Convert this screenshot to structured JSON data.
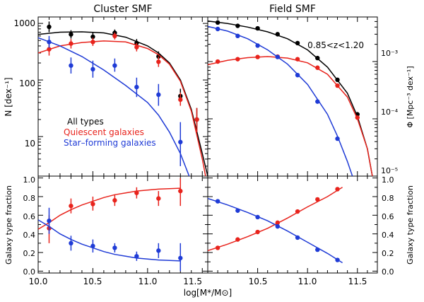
{
  "chart_data": {
    "type": "scatter",
    "x_axis": {
      "label": "log[M*/M⊙]",
      "left_ticks": [
        "10.0",
        "10.5",
        "11.0",
        "11.5"
      ],
      "right_ticks": [
        "10.5",
        "11.0",
        "11.5"
      ],
      "left_range": [
        10.0,
        11.55
      ],
      "right_range": [
        10.0,
        11.7
      ]
    },
    "panels": {
      "cluster_smf": {
        "title": "Cluster SMF",
        "ylabel": "N [dex⁻¹]",
        "yscale": "log",
        "ylim": [
          2,
          1300
        ],
        "tick_labels": [
          "1000",
          "100",
          "10"
        ],
        "legend": {
          "all_label": "All types",
          "quiescent_label": "Quiescent galaxies",
          "starforming_label": "Star–forming galaxies"
        },
        "series": [
          {
            "name": "All types",
            "color": "#000000",
            "points": [
              [
                10.1,
                870,
                700,
                1080
              ],
              [
                10.3,
                640,
                540,
                760
              ],
              [
                10.5,
                580,
                480,
                690
              ],
              [
                10.7,
                680,
                600,
                780
              ],
              [
                10.9,
                450,
                380,
                530
              ],
              [
                11.1,
                260,
                210,
                320
              ],
              [
                11.3,
                52,
                40,
                70
              ],
              [
                11.45,
                20,
                12,
                32
              ]
            ],
            "curve": [
              [
                10.0,
                640
              ],
              [
                10.2,
                700
              ],
              [
                10.4,
                710
              ],
              [
                10.6,
                680
              ],
              [
                10.8,
                570
              ],
              [
                11.0,
                400
              ],
              [
                11.1,
                300
              ],
              [
                11.2,
                200
              ],
              [
                11.3,
                100
              ],
              [
                11.4,
                30
              ],
              [
                11.5,
                5
              ],
              [
                11.55,
                2
              ]
            ]
          },
          {
            "name": "Quiescent galaxies",
            "color": "#e8231c",
            "points": [
              [
                10.1,
                350,
                270,
                440
              ],
              [
                10.3,
                440,
                360,
                530
              ],
              [
                10.5,
                470,
                400,
                560
              ],
              [
                10.7,
                600,
                520,
                690
              ],
              [
                10.9,
                380,
                320,
                450
              ],
              [
                11.1,
                210,
                170,
                260
              ],
              [
                11.3,
                45,
                35,
                60
              ],
              [
                11.45,
                20,
                12,
                32
              ]
            ],
            "curve": [
              [
                10.0,
                300
              ],
              [
                10.2,
                400
              ],
              [
                10.4,
                460
              ],
              [
                10.6,
                490
              ],
              [
                10.8,
                470
              ],
              [
                11.0,
                360
              ],
              [
                11.1,
                280
              ],
              [
                11.2,
                190
              ],
              [
                11.3,
                95
              ],
              [
                11.4,
                28
              ],
              [
                11.5,
                4
              ],
              [
                11.53,
                2
              ]
            ]
          },
          {
            "name": "Star-forming galaxies",
            "color": "#1f3bd6",
            "points": [
              [
                10.1,
                470,
                370,
                600
              ],
              [
                10.3,
                180,
                130,
                250
              ],
              [
                10.5,
                155,
                110,
                220
              ],
              [
                10.7,
                180,
                140,
                240
              ],
              [
                10.9,
                75,
                50,
                110
              ],
              [
                11.1,
                55,
                35,
                85
              ],
              [
                11.3,
                8,
                3,
                18
              ]
            ],
            "curve": [
              [
                10.0,
                560
              ],
              [
                10.2,
                400
              ],
              [
                10.4,
                260
              ],
              [
                10.6,
                150
              ],
              [
                10.8,
                80
              ],
              [
                11.0,
                40
              ],
              [
                11.1,
                24
              ],
              [
                11.2,
                12
              ],
              [
                11.3,
                5
              ],
              [
                11.38,
                2
              ]
            ]
          }
        ]
      },
      "field_smf": {
        "title": "Field SMF",
        "ylabel": "Φ [Mpc⁻³ dex⁻¹]",
        "yscale": "log",
        "ylim": [
          1e-05,
          0.006
        ],
        "tick_labels": [
          "10⁻³",
          "10⁻⁴",
          "10⁻⁵"
        ],
        "annotation": "0.85<z<1.20",
        "series": [
          {
            "name": "All types",
            "color": "#000000",
            "points": [
              [
                10.1,
                0.0048
              ],
              [
                10.3,
                0.0042
              ],
              [
                10.5,
                0.0038
              ],
              [
                10.7,
                0.003
              ],
              [
                10.9,
                0.0021
              ],
              [
                11.1,
                0.00115
              ],
              [
                11.3,
                0.00048
              ],
              [
                11.5,
                0.00012
              ]
            ],
            "curve": [
              [
                10.0,
                0.0051
              ],
              [
                10.2,
                0.0046
              ],
              [
                10.4,
                0.004
              ],
              [
                10.6,
                0.0033
              ],
              [
                10.8,
                0.0025
              ],
              [
                11.0,
                0.0016
              ],
              [
                11.2,
                0.0008
              ],
              [
                11.4,
                0.00028
              ],
              [
                11.5,
                0.00011
              ],
              [
                11.6,
                3e-05
              ],
              [
                11.65,
                1e-05
              ]
            ]
          },
          {
            "name": "Quiescent galaxies",
            "color": "#e8231c",
            "points": [
              [
                10.1,
                0.001
              ],
              [
                10.3,
                0.0011
              ],
              [
                10.5,
                0.0012
              ],
              [
                10.7,
                0.00122
              ],
              [
                10.9,
                0.0011
              ],
              [
                11.1,
                0.00078
              ],
              [
                11.3,
                0.00038
              ],
              [
                11.5,
                0.000105
              ]
            ],
            "curve": [
              [
                10.0,
                0.00088
              ],
              [
                10.2,
                0.00105
              ],
              [
                10.4,
                0.00117
              ],
              [
                10.6,
                0.00122
              ],
              [
                10.8,
                0.00115
              ],
              [
                11.0,
                0.00095
              ],
              [
                11.2,
                0.0006
              ],
              [
                11.4,
                0.00024
              ],
              [
                11.5,
                0.0001
              ],
              [
                11.6,
                3e-05
              ],
              [
                11.65,
                1e-05
              ]
            ]
          },
          {
            "name": "Star-forming galaxies",
            "color": "#1f3bd6",
            "points": [
              [
                10.1,
                0.0037
              ],
              [
                10.3,
                0.0028
              ],
              [
                10.5,
                0.0019
              ],
              [
                10.7,
                0.0012
              ],
              [
                10.9,
                0.00058
              ],
              [
                11.1,
                0.0002
              ],
              [
                11.3,
                4.5e-05
              ]
            ],
            "curve": [
              [
                10.0,
                0.0041
              ],
              [
                10.2,
                0.0034
              ],
              [
                10.4,
                0.0025
              ],
              [
                10.6,
                0.0016
              ],
              [
                10.8,
                0.0009
              ],
              [
                11.0,
                0.0004
              ],
              [
                11.2,
                0.00012
              ],
              [
                11.3,
                5e-05
              ],
              [
                11.4,
                1.8e-05
              ],
              [
                11.45,
                1e-05
              ]
            ]
          }
        ]
      },
      "cluster_fraction": {
        "ylabel": "Galaxy type fraction",
        "ylim": [
          -0.02,
          1.02
        ],
        "tick_labels": [
          "0.0",
          "0.2",
          "0.4",
          "0.6",
          "0.8",
          "1.0"
        ],
        "series": [
          {
            "name": "Quiescent fraction",
            "color": "#e8231c",
            "points": [
              [
                10.1,
                0.46,
                0.3,
                0.6
              ],
              [
                10.3,
                0.7,
                0.62,
                0.78
              ],
              [
                10.5,
                0.72,
                0.65,
                0.8
              ],
              [
                10.7,
                0.76,
                0.7,
                0.82
              ],
              [
                10.9,
                0.84,
                0.78,
                0.9
              ],
              [
                11.1,
                0.78,
                0.7,
                0.86
              ],
              [
                11.3,
                0.86,
                0.7,
                1.0
              ]
            ],
            "curve": [
              [
                10.0,
                0.45
              ],
              [
                10.1,
                0.52
              ],
              [
                10.2,
                0.6
              ],
              [
                10.3,
                0.66
              ],
              [
                10.4,
                0.71
              ],
              [
                10.5,
                0.75
              ],
              [
                10.6,
                0.79
              ],
              [
                10.7,
                0.82
              ],
              [
                10.8,
                0.84
              ],
              [
                10.9,
                0.86
              ],
              [
                11.0,
                0.87
              ],
              [
                11.1,
                0.88
              ],
              [
                11.2,
                0.885
              ],
              [
                11.3,
                0.89
              ]
            ]
          },
          {
            "name": "Star-forming fraction",
            "color": "#1f3bd6",
            "points": [
              [
                10.1,
                0.54,
                0.4,
                0.68
              ],
              [
                10.3,
                0.3,
                0.22,
                0.38
              ],
              [
                10.5,
                0.27,
                0.2,
                0.34
              ],
              [
                10.7,
                0.25,
                0.2,
                0.3
              ],
              [
                10.9,
                0.16,
                0.11,
                0.21
              ],
              [
                11.1,
                0.22,
                0.14,
                0.3
              ],
              [
                11.3,
                0.14,
                0.0,
                0.3
              ]
            ],
            "curve": [
              [
                10.0,
                0.55
              ],
              [
                10.1,
                0.48
              ],
              [
                10.2,
                0.4
              ],
              [
                10.3,
                0.34
              ],
              [
                10.4,
                0.29
              ],
              [
                10.5,
                0.25
              ],
              [
                10.6,
                0.21
              ],
              [
                10.7,
                0.18
              ],
              [
                10.8,
                0.16
              ],
              [
                10.9,
                0.14
              ],
              [
                11.0,
                0.13
              ],
              [
                11.1,
                0.12
              ],
              [
                11.2,
                0.115
              ],
              [
                11.3,
                0.11
              ]
            ]
          }
        ]
      },
      "field_fraction": {
        "ylabel": "Galaxy type fraction",
        "ylim": [
          -0.02,
          1.02
        ],
        "tick_labels": [
          "0.0",
          "0.2",
          "0.4",
          "0.6",
          "0.8",
          "1.0"
        ],
        "series": [
          {
            "name": "Quiescent fraction",
            "color": "#e8231c",
            "points": [
              [
                10.1,
                0.25
              ],
              [
                10.3,
                0.34
              ],
              [
                10.5,
                0.42
              ],
              [
                10.7,
                0.52
              ],
              [
                10.9,
                0.64
              ],
              [
                11.1,
                0.77
              ],
              [
                11.3,
                0.88
              ]
            ],
            "curve": [
              [
                10.0,
                0.22
              ],
              [
                10.2,
                0.29
              ],
              [
                10.4,
                0.37
              ],
              [
                10.6,
                0.46
              ],
              [
                10.8,
                0.57
              ],
              [
                11.0,
                0.69
              ],
              [
                11.2,
                0.8
              ],
              [
                11.35,
                0.9
              ]
            ]
          },
          {
            "name": "Star-forming fraction",
            "color": "#1f3bd6",
            "points": [
              [
                10.1,
                0.75
              ],
              [
                10.3,
                0.65
              ],
              [
                10.5,
                0.58
              ],
              [
                10.7,
                0.48
              ],
              [
                10.9,
                0.36
              ],
              [
                11.1,
                0.23
              ],
              [
                11.3,
                0.12
              ]
            ],
            "curve": [
              [
                10.0,
                0.78
              ],
              [
                10.2,
                0.71
              ],
              [
                10.4,
                0.63
              ],
              [
                10.6,
                0.54
              ],
              [
                10.8,
                0.43
              ],
              [
                11.0,
                0.31
              ],
              [
                11.2,
                0.19
              ],
              [
                11.35,
                0.09
              ]
            ]
          }
        ]
      }
    }
  }
}
